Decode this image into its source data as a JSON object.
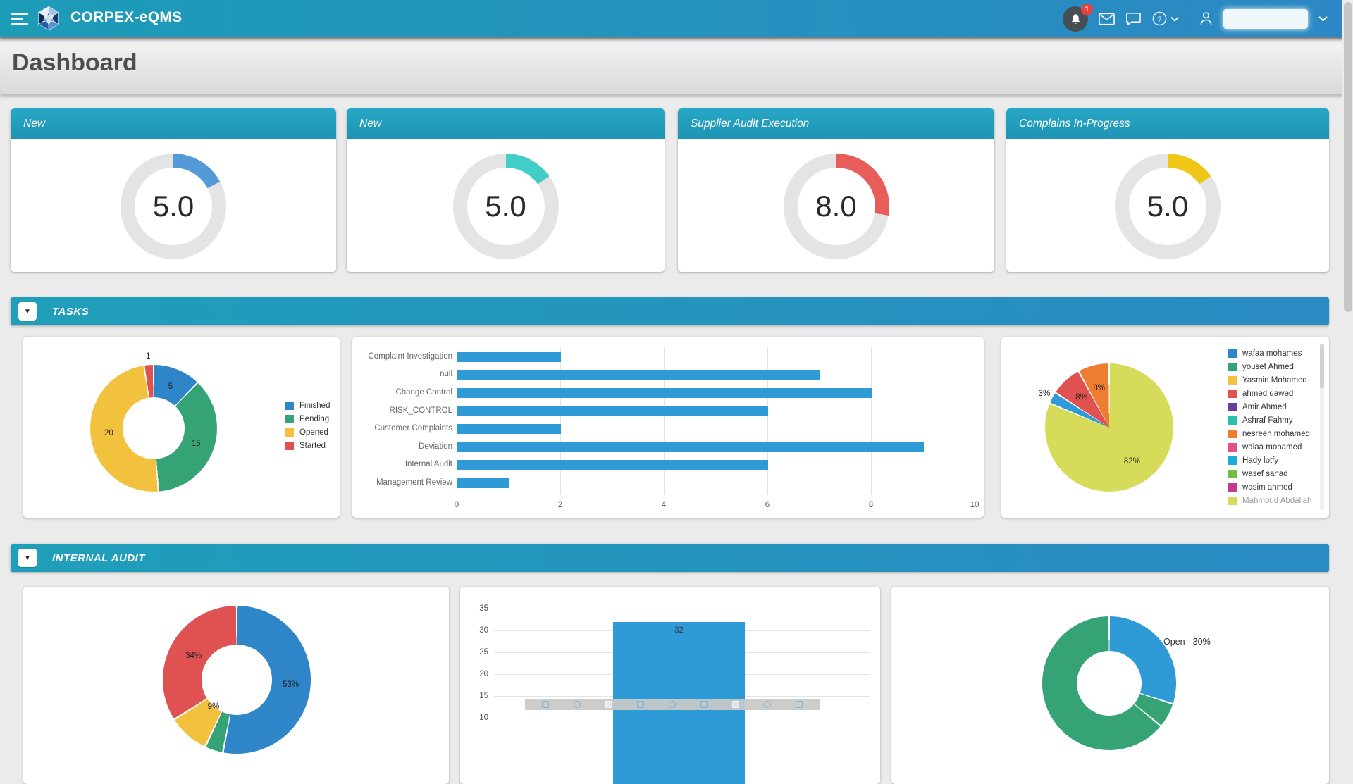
{
  "theme": {
    "navbar_gradient_left": "#1d9cb8",
    "navbar_gradient_right": "#2b88c4",
    "section_header_color": "#1f9fba",
    "page_background": "#ebebeb",
    "gauge_track_color": "#e4e4e4"
  },
  "navbar": {
    "brand": "CORPEX-eQMS",
    "notification_badge": "1",
    "icons": [
      "menu-icon",
      "logo-hexagon-icon",
      "bell-icon",
      "mail-icon",
      "chat-icon",
      "help-icon",
      "chevron-down-icon",
      "user-icon",
      "chevron-down-icon"
    ]
  },
  "page": {
    "title": "Dashboard"
  },
  "kpi_cards": [
    {
      "title": "New",
      "value": "5.0",
      "color": "#549ad8",
      "sweep": 62
    },
    {
      "title": "New",
      "value": "5.0",
      "color": "#42cec7",
      "sweep": 55
    },
    {
      "title": "Supplier Audit Execution",
      "value": "8.0",
      "color": "#e85c5a",
      "sweep": 100
    },
    {
      "title": "Complains In-Progress",
      "value": "5.0",
      "color": "#f0c617",
      "sweep": 55
    }
  ],
  "sections": {
    "tasks": {
      "title": "TASKS"
    },
    "internal_audit": {
      "title": "INTERNAL AUDIT"
    }
  },
  "chart_data": {
    "tasks_status_donut": {
      "type": "donut",
      "legend_position": "right",
      "slices": [
        {
          "label": "5",
          "legend": "Finished",
          "value": 5,
          "color": "#2e86c8"
        },
        {
          "label": "15",
          "legend": "Pending",
          "value": 15,
          "color": "#35a376"
        },
        {
          "label": "20",
          "legend": "Opened",
          "value": 20,
          "color": "#f2c23e"
        },
        {
          "label": "1",
          "legend": "Started",
          "value": 1,
          "color": "#e05252"
        }
      ]
    },
    "tasks_type_bar": {
      "type": "bar",
      "orientation": "horizontal",
      "categories": [
        "Complaint Investigation",
        "null",
        "Change Control",
        "RISK_CONTROL",
        "Customer Complaints",
        "Deviation",
        "Internal Audit",
        "Management Review"
      ],
      "values": [
        2,
        7,
        8,
        6,
        2,
        9,
        6,
        1
      ],
      "bar_color": "#2e9bd6",
      "xticks": [
        0,
        2,
        4,
        6,
        8,
        10
      ],
      "xlim": [
        0,
        10
      ],
      "grid": true
    },
    "tasks_assignee_pie": {
      "type": "pie",
      "legend_position": "right",
      "slices": [
        {
          "label": "82%",
          "value": 82,
          "color": "#d7db5a"
        },
        {
          "label": "3%",
          "value": 3,
          "color": "#2e9bd6"
        },
        {
          "label": "8%",
          "value": 8,
          "color": "#e05252"
        },
        {
          "label": "8%",
          "value": 8,
          "color": "#ed7d31"
        }
      ],
      "legend": [
        {
          "label": "wafaa mohames",
          "color": "#2e86c8"
        },
        {
          "label": "yousef Ahmed",
          "color": "#35a376"
        },
        {
          "label": "Yasmin Mohamed",
          "color": "#f2c23e"
        },
        {
          "label": "ahmed dawed",
          "color": "#e05252"
        },
        {
          "label": "Amir Ahmed",
          "color": "#6a3d9a"
        },
        {
          "label": "Ashraf Fahmy",
          "color": "#2dbfa8"
        },
        {
          "label": "nesreen mohamed",
          "color": "#ed7d31"
        },
        {
          "label": "walaa mohamed",
          "color": "#e0508c"
        },
        {
          "label": "Hady lotfy",
          "color": "#1cadd8"
        },
        {
          "label": "wasef sanad",
          "color": "#6fbe44"
        },
        {
          "label": "wasim ahmed",
          "color": "#c23b8b"
        },
        {
          "label": "Mahmoud Abdallah",
          "color": "#d7db5a",
          "muted": true
        }
      ]
    },
    "audit_status_donut": {
      "type": "donut",
      "slices": [
        {
          "label": "53%",
          "value": 53,
          "color": "#2e86c8"
        },
        {
          "label": "",
          "value": 4,
          "color": "#35a376"
        },
        {
          "label": "9%",
          "value": 9,
          "color": "#f2c23e"
        },
        {
          "label": "34%",
          "value": 34,
          "color": "#e05252"
        }
      ]
    },
    "audit_count_bar": {
      "type": "bar",
      "orientation": "vertical",
      "values": [
        32
      ],
      "bar_labels": [
        "32"
      ],
      "bar_color": "#2e9bd6",
      "yticks": [
        35,
        30,
        25,
        20,
        15,
        10
      ],
      "grid": true
    },
    "audit_open_donut": {
      "type": "donut",
      "callout": "Open - 30%",
      "slices": [
        {
          "label": "",
          "value": 30,
          "color": "#2e9bd6"
        },
        {
          "label": "",
          "value": 6,
          "color": "#35a376"
        },
        {
          "label": "",
          "value": 64,
          "color": "#35a376"
        }
      ]
    }
  }
}
